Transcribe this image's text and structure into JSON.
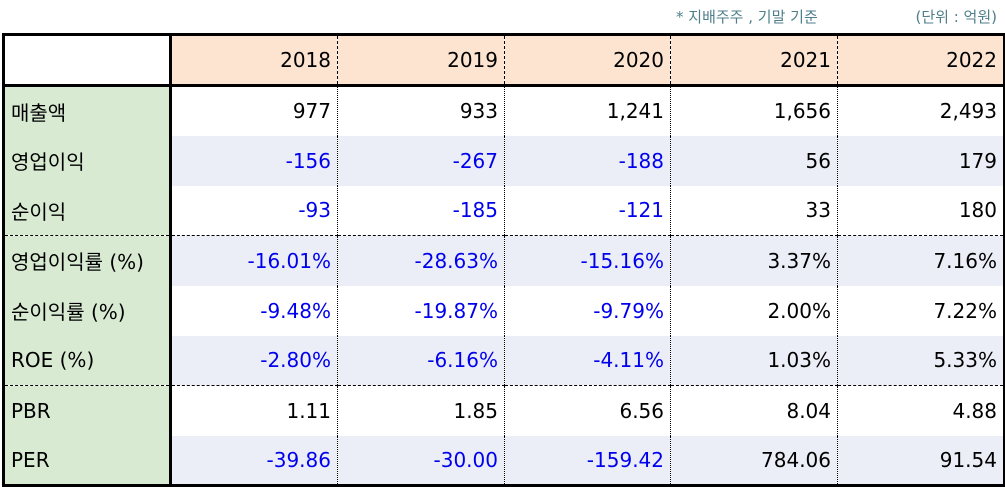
{
  "notes": {
    "basis": "* 지배주주 , 기말 기준",
    "unit": "(단위 : 억원)"
  },
  "table": {
    "years": [
      "2018",
      "2019",
      "2020",
      "2021",
      "2022"
    ],
    "rows": [
      {
        "label": "매출액",
        "values": [
          "977",
          "933",
          "1,241",
          "1,656",
          "2,493"
        ]
      },
      {
        "label": "영업이익",
        "values": [
          "-156",
          "-267",
          "-188",
          "56",
          "179"
        ]
      },
      {
        "label": "순이익",
        "values": [
          "-93",
          "-185",
          "-121",
          "33",
          "180"
        ]
      },
      {
        "label": "영업이익률 (%)",
        "values": [
          "-16.01%",
          "-28.63%",
          "-15.16%",
          "3.37%",
          "7.16%"
        ]
      },
      {
        "label": "순이익률 (%)",
        "values": [
          "-9.48%",
          "-19.87%",
          "-9.79%",
          "2.00%",
          "7.22%"
        ]
      },
      {
        "label": "ROE (%)",
        "values": [
          "-2.80%",
          "-6.16%",
          "-4.11%",
          "1.03%",
          "5.33%"
        ]
      },
      {
        "label": "PBR",
        "values": [
          "1.11",
          "1.85",
          "6.56",
          "8.04",
          "4.88"
        ]
      },
      {
        "label": "PER",
        "values": [
          "-39.86",
          "-30.00",
          "-159.42",
          "784.06",
          "91.54"
        ]
      }
    ]
  },
  "colors": {
    "negative": "#0000ee",
    "header_bg": "#fce4d0",
    "label_bg": "#d9ead3",
    "alt_row_bg": "#ebeef6",
    "note_text": "#4f7f8a"
  }
}
